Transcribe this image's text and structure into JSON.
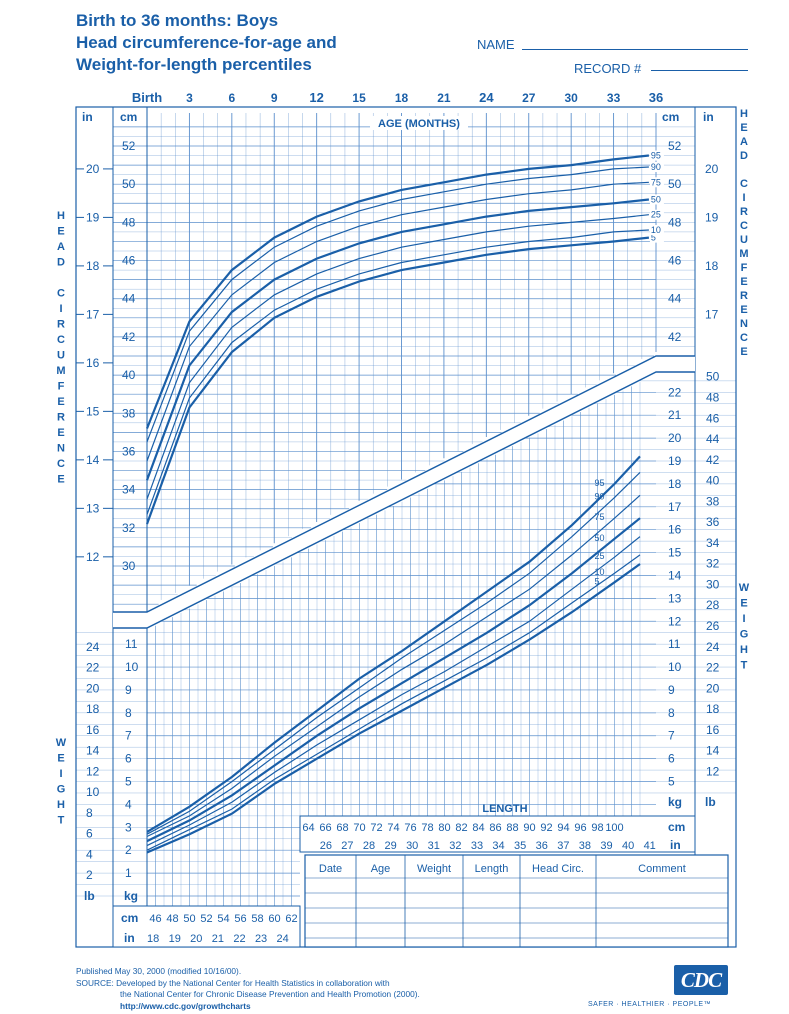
{
  "header": {
    "title_line1": "Birth to 36 months: Boys",
    "title_line2": "Head circumference-for-age and",
    "title_line3": "Weight-for-length percentiles",
    "name_label": "NAME",
    "record_label": "RECORD #"
  },
  "chart_data": [
    {
      "type": "line",
      "title": "Head circumference-for-age",
      "xlabel": "AGE (MONTHS)",
      "ylabel": "HEAD CIRCUMFERENCE",
      "x_ticks": [
        "Birth",
        "3",
        "6",
        "9",
        "12",
        "15",
        "18",
        "21",
        "24",
        "27",
        "30",
        "33",
        "36"
      ],
      "xlim": [
        0,
        36
      ],
      "ylim_cm": [
        28,
        53
      ],
      "cm_ticks": [
        "30",
        "32",
        "34",
        "36",
        "38",
        "40",
        "42",
        "44",
        "46",
        "48",
        "50",
        "52"
      ],
      "in_ticks": [
        "12",
        "13",
        "14",
        "15",
        "16",
        "17",
        "18",
        "19",
        "20"
      ],
      "unit_cm": "cm",
      "unit_in": "in",
      "x": [
        0,
        3,
        6,
        9,
        12,
        15,
        18,
        21,
        24,
        27,
        30,
        33,
        35.5
      ],
      "series": [
        {
          "name": "5",
          "values": [
            32.2,
            38.3,
            41.2,
            43.0,
            44.1,
            44.9,
            45.5,
            45.9,
            46.3,
            46.6,
            46.8,
            47.0,
            47.2
          ]
        },
        {
          "name": "10",
          "values": [
            32.7,
            38.8,
            41.7,
            43.4,
            44.5,
            45.3,
            45.9,
            46.3,
            46.7,
            47.0,
            47.2,
            47.5,
            47.6
          ]
        },
        {
          "name": "25",
          "values": [
            33.5,
            39.6,
            42.5,
            44.2,
            45.3,
            46.1,
            46.7,
            47.1,
            47.5,
            47.8,
            48.0,
            48.2,
            48.4
          ]
        },
        {
          "name": "50",
          "values": [
            34.5,
            40.5,
            43.3,
            45.0,
            46.1,
            46.9,
            47.5,
            47.9,
            48.3,
            48.6,
            48.8,
            49.0,
            49.2
          ]
        },
        {
          "name": "75",
          "values": [
            35.5,
            41.5,
            44.2,
            45.9,
            47.0,
            47.8,
            48.4,
            48.8,
            49.2,
            49.5,
            49.7,
            50.0,
            50.1
          ]
        },
        {
          "name": "90",
          "values": [
            36.5,
            42.3,
            45.0,
            46.7,
            47.8,
            48.6,
            49.2,
            49.6,
            50.0,
            50.3,
            50.5,
            50.8,
            50.9
          ]
        },
        {
          "name": "95",
          "values": [
            37.2,
            42.8,
            45.5,
            47.2,
            48.3,
            49.1,
            49.7,
            50.1,
            50.5,
            50.8,
            51.0,
            51.3,
            51.5
          ]
        }
      ]
    },
    {
      "type": "line",
      "title": "Weight-for-length",
      "xlabel": "LENGTH",
      "ylabel": "WEIGHT",
      "xlim_cm": [
        45,
        103
      ],
      "ylim_kg": [
        0,
        24
      ],
      "x_cm_ticks_left": [
        "46",
        "48",
        "50",
        "52",
        "54",
        "56",
        "58",
        "60",
        "62"
      ],
      "x_in_ticks_left": [
        "18",
        "19",
        "20",
        "21",
        "22",
        "23",
        "24"
      ],
      "x_cm_ticks_right": [
        "64",
        "66",
        "68",
        "70",
        "72",
        "74",
        "76",
        "78",
        "80",
        "82",
        "84",
        "86",
        "88",
        "90",
        "92",
        "94",
        "96",
        "98",
        "100"
      ],
      "x_in_ticks_right": [
        "26",
        "27",
        "28",
        "29",
        "30",
        "31",
        "32",
        "33",
        "34",
        "35",
        "36",
        "37",
        "38",
        "39",
        "40",
        "41"
      ],
      "kg_ticks_left": [
        "1",
        "2",
        "3",
        "4",
        "5",
        "6",
        "7",
        "8",
        "9",
        "10",
        "11"
      ],
      "lb_ticks_left": [
        "2",
        "4",
        "6",
        "8",
        "10",
        "12",
        "14",
        "16",
        "18",
        "20",
        "22",
        "24"
      ],
      "kg_ticks_right": [
        "5",
        "6",
        "7",
        "8",
        "9",
        "10",
        "11",
        "12",
        "13",
        "14",
        "15",
        "16",
        "17",
        "18",
        "19",
        "20",
        "21",
        "22"
      ],
      "lb_ticks_right": [
        "12",
        "14",
        "16",
        "18",
        "20",
        "22",
        "24",
        "26",
        "28",
        "30",
        "32",
        "34",
        "36",
        "38",
        "40",
        "42",
        "44",
        "46",
        "48",
        "50"
      ],
      "unit_kg": "kg",
      "unit_lb": "lb",
      "unit_cm": "cm",
      "unit_in": "in",
      "x": [
        45,
        50,
        55,
        60,
        65,
        70,
        75,
        80,
        85,
        90,
        95,
        100,
        103
      ],
      "series": [
        {
          "name": "5",
          "values": [
            1.9,
            2.7,
            3.6,
            4.9,
            6.0,
            7.1,
            8.1,
            9.1,
            10.1,
            11.2,
            12.4,
            13.7,
            14.5
          ]
        },
        {
          "name": "10",
          "values": [
            2.0,
            2.9,
            3.8,
            5.1,
            6.2,
            7.3,
            8.4,
            9.4,
            10.4,
            11.5,
            12.8,
            14.1,
            14.9
          ]
        },
        {
          "name": "25",
          "values": [
            2.2,
            3.1,
            4.1,
            5.4,
            6.6,
            7.7,
            8.8,
            9.8,
            10.9,
            12.0,
            13.4,
            14.8,
            15.7
          ]
        },
        {
          "name": "50",
          "values": [
            2.4,
            3.3,
            4.4,
            5.7,
            7.0,
            8.2,
            9.3,
            10.4,
            11.5,
            12.7,
            14.1,
            15.6,
            16.5
          ]
        },
        {
          "name": "75",
          "values": [
            2.6,
            3.5,
            4.7,
            6.1,
            7.4,
            8.7,
            9.9,
            11.0,
            12.2,
            13.4,
            14.9,
            16.5,
            17.5
          ]
        },
        {
          "name": "90",
          "values": [
            2.7,
            3.7,
            5.0,
            6.4,
            7.8,
            9.1,
            10.4,
            11.6,
            12.8,
            14.1,
            15.7,
            17.4,
            18.5
          ]
        },
        {
          "name": "95",
          "values": [
            2.8,
            3.9,
            5.2,
            6.7,
            8.1,
            9.5,
            10.7,
            12.0,
            13.3,
            14.6,
            16.2,
            18.0,
            19.2
          ]
        }
      ]
    }
  ],
  "record_table": {
    "headers": [
      "Date",
      "Age",
      "Weight",
      "Length",
      "Head Circ.",
      "Comment"
    ]
  },
  "footer": {
    "line1": "Published May 30, 2000 (modified 10/16/00).",
    "line2": "SOURCE: Developed by the National Center for Health Statistics in collaboration with",
    "line3": "the National Center for Chronic Disease Prevention and Health Promotion (2000).",
    "line4": "http://www.cdc.gov/growthcharts"
  },
  "logo": {
    "text": "CDC",
    "tagline": "SAFER · HEALTHIER · PEOPLE™"
  },
  "colors": {
    "ink": "#1a5fa8",
    "grid": "#5b8fcc"
  }
}
